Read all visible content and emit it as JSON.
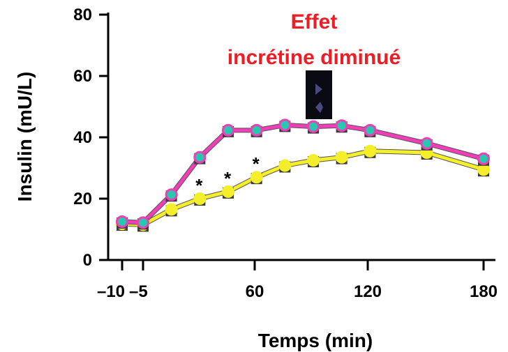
{
  "chart_data": {
    "type": "line",
    "xlabel": "Temps (min)",
    "ylabel": "Insulin (mU/L)",
    "x_tick_labels": [
      "–10",
      "–5",
      "60",
      "120",
      "180"
    ],
    "y_ticks": [
      0,
      20,
      40,
      60,
      80
    ],
    "ylim": [
      0,
      80
    ],
    "x": [
      -10,
      -5,
      15,
      30,
      45,
      60,
      75,
      90,
      105,
      120,
      150,
      180
    ],
    "series": [
      {
        "color": "#ee3fb7",
        "marker_color": "#27c7b0",
        "values": [
          12.5,
          12.2,
          21.3,
          33.5,
          42.3,
          42.3,
          44.0,
          43.5,
          43.8,
          42.3,
          38.0,
          33.0
        ]
      },
      {
        "color": "#f5ee2a",
        "marker_color": "#f5ee2a",
        "values": [
          11.8,
          11.5,
          16.5,
          20.0,
          22.3,
          27.0,
          30.8,
          32.5,
          33.5,
          35.5,
          35.0,
          29.5
        ]
      }
    ],
    "significance_marks": [
      {
        "x": 30,
        "y": 20.0,
        "label": "*"
      },
      {
        "x": 45,
        "y": 22.3,
        "label": "*"
      },
      {
        "x": 60,
        "y": 27.0,
        "label": "*"
      }
    ],
    "annotation": {
      "lines": [
        "Effet",
        "incrétine diminué"
      ],
      "color": "#ee1c24"
    },
    "grid": false
  }
}
